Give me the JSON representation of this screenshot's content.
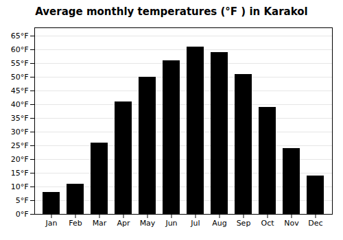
{
  "chart_data": {
    "type": "bar",
    "title": "Average monthly temperatures (°F ) in Karakol",
    "categories": [
      "Jan",
      "Feb",
      "Mar",
      "Apr",
      "May",
      "Jun",
      "Jul",
      "Aug",
      "Sep",
      "Oct",
      "Nov",
      "Dec"
    ],
    "values": [
      8,
      11,
      26,
      41,
      50,
      56,
      61,
      59,
      51,
      39,
      24,
      14
    ],
    "ylim": [
      0,
      68
    ],
    "yticks": [
      {
        "value": 0,
        "label": "0°F"
      },
      {
        "value": 5,
        "label": "5°F"
      },
      {
        "value": 10,
        "label": "10°F"
      },
      {
        "value": 15,
        "label": "15°F"
      },
      {
        "value": 20,
        "label": "20°F"
      },
      {
        "value": 25,
        "label": "25°F"
      },
      {
        "value": 30,
        "label": "30°F"
      },
      {
        "value": 35,
        "label": "35°F"
      },
      {
        "value": 40,
        "label": "40°F"
      },
      {
        "value": 45,
        "label": "45°F"
      },
      {
        "value": 50,
        "label": "50°F"
      },
      {
        "value": 55,
        "label": "55°F"
      },
      {
        "value": 60,
        "label": "60°F"
      },
      {
        "value": 65,
        "label": "65°F"
      }
    ],
    "grid": true
  }
}
